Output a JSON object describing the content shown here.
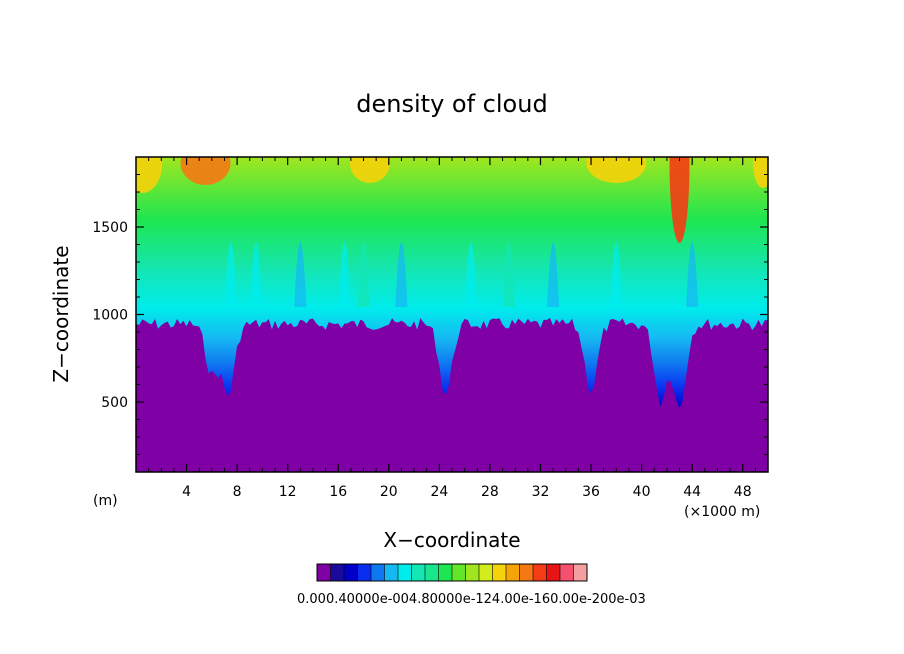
{
  "chart_data": {
    "type": "heatmap",
    "title": "density of cloud",
    "xlabel": "X−coordinate",
    "ylabel": "Z−coordinate",
    "x_unit_left": "(m)",
    "x_unit_right": "(×1000 m)",
    "xlim": [
      0,
      50
    ],
    "ylim": [
      100,
      1900
    ],
    "x_ticks": [
      4,
      8,
      12,
      16,
      20,
      24,
      28,
      32,
      36,
      40,
      44,
      48
    ],
    "y_ticks": [
      500,
      1000,
      1500
    ],
    "colorbar": {
      "colors": [
        "#7f00a5",
        "#1a0a9c",
        "#0000c8",
        "#0a2ef0",
        "#0f78f0",
        "#16b8f2",
        "#00ecec",
        "#14e6b4",
        "#19e68c",
        "#1ee650",
        "#64e628",
        "#a0e61e",
        "#d2ec1e",
        "#f5d20a",
        "#f5a50a",
        "#f57814",
        "#f53c14",
        "#e61414",
        "#f5506e",
        "#f5a0a0"
      ],
      "label_text": "0.000.40000e-004.80000e-124.00e-160.00e-200e-03"
    },
    "field_description_levels": {
      "cloud_base_z": 1000,
      "cloud_top_z": 1900
    }
  }
}
